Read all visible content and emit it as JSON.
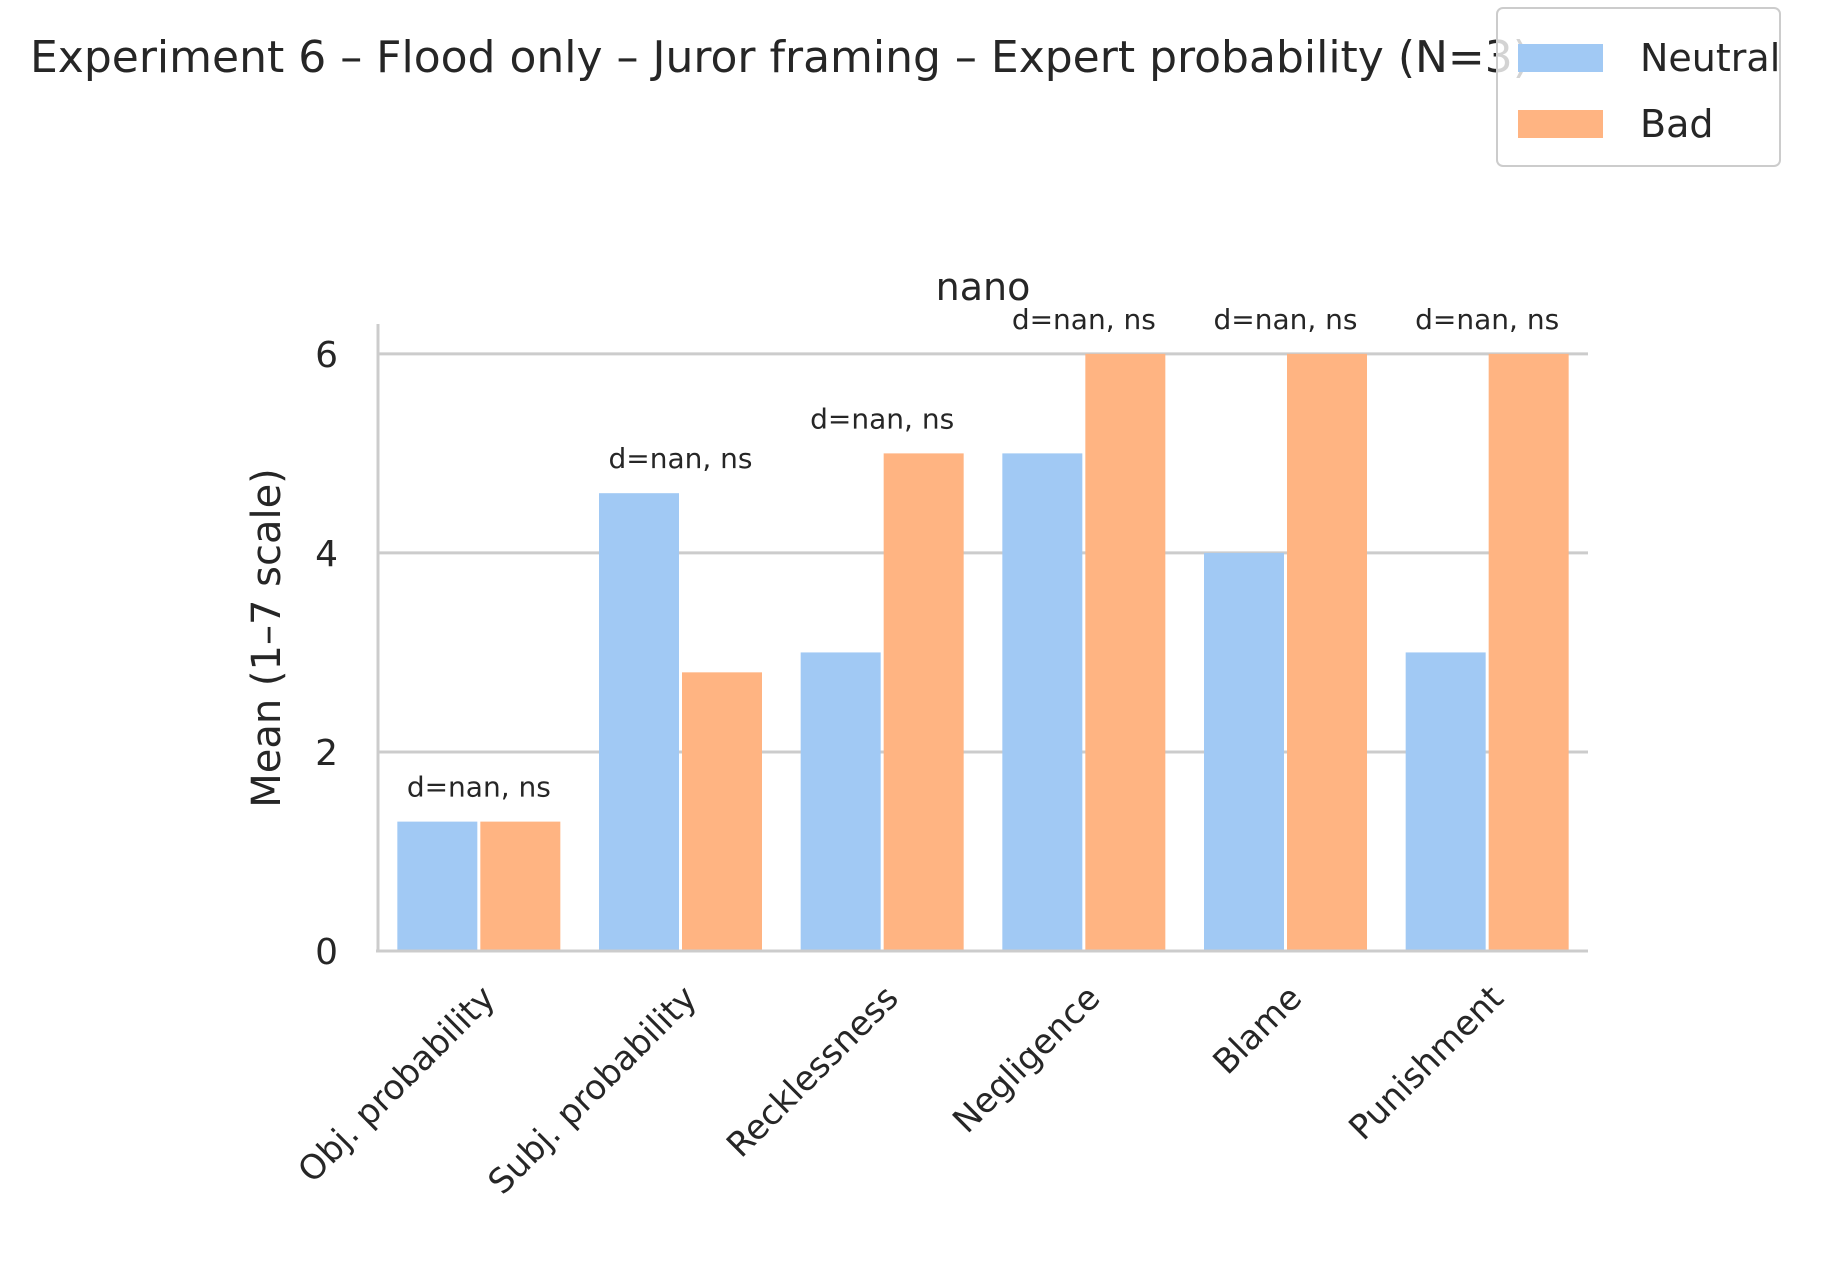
{
  "chart_data": {
    "type": "bar",
    "title": "Experiment 6 – Flood only – Juror framing – Expert probability (N=3)",
    "subtitle": "nano",
    "ylabel": "Mean (1–7 scale)",
    "xlabel": "",
    "ylim": [
      0,
      6.3
    ],
    "yticks": [
      0,
      2,
      4,
      6
    ],
    "grid": "horizontal",
    "legend": "top-right",
    "categories": [
      "Obj. probability",
      "Subj. probability",
      "Recklessness",
      "Negligence",
      "Blame",
      "Punishment"
    ],
    "series": [
      {
        "name": "Neutral",
        "color": "#a1c9f4",
        "values": [
          1.3,
          4.6,
          3.0,
          5.0,
          4.0,
          3.0
        ]
      },
      {
        "name": "Bad",
        "color": "#ffb482",
        "values": [
          1.3,
          2.8,
          5.0,
          6.0,
          6.0,
          6.0
        ]
      }
    ],
    "annotations": [
      "d=nan, ns",
      "d=nan, ns",
      "d=nan, ns",
      "d=nan, ns",
      "d=nan, ns",
      "d=nan, ns"
    ]
  }
}
